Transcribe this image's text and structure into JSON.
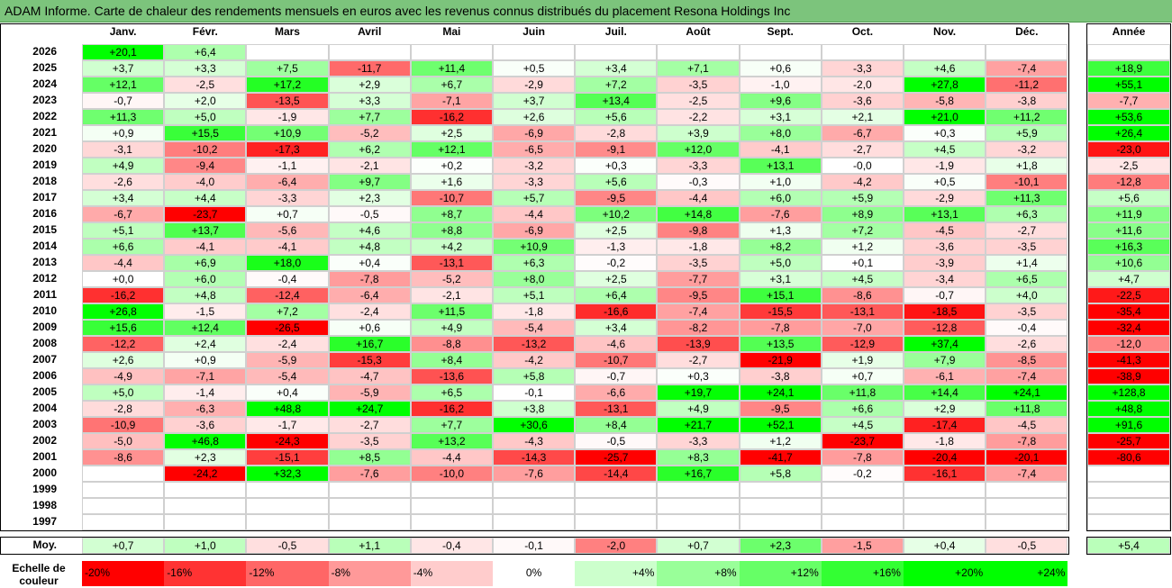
{
  "title": "ADAM Informe. Carte de chaleur des rendements mensuels en euros avec les revenus connus distribués du placement Resona Holdings Inc",
  "chart_data": {
    "type": "heatmap",
    "title": "ADAM Informe. Carte de chaleur des rendements mensuels en euros avec les revenus connus distribués du placement Resona Holdings Inc",
    "months": [
      "Janv.",
      "Févr.",
      "Mars",
      "Avril",
      "Mai",
      "Juin",
      "Juil.",
      "Août",
      "Sept.",
      "Oct.",
      "Nov.",
      "Déc."
    ],
    "year_header": "Année",
    "rows": [
      {
        "year": "2026",
        "values": [
          "+20,1",
          "+6,4",
          "",
          "",
          "",
          "",
          "",
          "",
          "",
          "",
          "",
          ""
        ],
        "annual": ""
      },
      {
        "year": "2025",
        "values": [
          "+3,7",
          "+3,3",
          "+7,5",
          "-11,7",
          "+11,4",
          "+0,5",
          "+3,4",
          "+7,1",
          "+0,6",
          "-3,3",
          "+4,6",
          "-7,4"
        ],
        "annual": "+18,9"
      },
      {
        "year": "2024",
        "values": [
          "+12,1",
          "-2,5",
          "+17,2",
          "+2,9",
          "+6,7",
          "-2,9",
          "+7,2",
          "-3,5",
          "-1,0",
          "-2,0",
          "+27,8",
          "-11,2"
        ],
        "annual": "+55,1"
      },
      {
        "year": "2023",
        "values": [
          "-0,7",
          "+2,0",
          "-13,5",
          "+3,3",
          "-7,1",
          "+3,7",
          "+13,4",
          "-2,5",
          "+9,6",
          "-3,6",
          "-5,8",
          "-3,8"
        ],
        "annual": "-7,7"
      },
      {
        "year": "2022",
        "values": [
          "+11,3",
          "+5,0",
          "-1,9",
          "+7,7",
          "-16,2",
          "+2,6",
          "+5,6",
          "-2,2",
          "+3,1",
          "+2,1",
          "+21,0",
          "+11,2"
        ],
        "annual": "+53,6"
      },
      {
        "year": "2021",
        "values": [
          "+0,9",
          "+15,5",
          "+10,9",
          "-5,2",
          "+2,5",
          "-6,9",
          "-2,8",
          "+3,9",
          "+8,0",
          "-6,7",
          "+0,3",
          "+5,9"
        ],
        "annual": "+26,4"
      },
      {
        "year": "2020",
        "values": [
          "-3,1",
          "-10,2",
          "-17,3",
          "+6,2",
          "+12,1",
          "-6,5",
          "-9,1",
          "+12,0",
          "-4,1",
          "-2,7",
          "+4,5",
          "-3,2"
        ],
        "annual": "-23,0"
      },
      {
        "year": "2019",
        "values": [
          "+4,9",
          "-9,4",
          "-1,1",
          "-2,1",
          "+0,2",
          "-3,2",
          "+0,3",
          "-3,3",
          "+13,1",
          "-0,0",
          "-1,9",
          "+1,8"
        ],
        "annual": "-2,5"
      },
      {
        "year": "2018",
        "values": [
          "-2,6",
          "-4,0",
          "-6,4",
          "+9,7",
          "+1,6",
          "-3,3",
          "+5,6",
          "-0,3",
          "+1,0",
          "-4,2",
          "+0,5",
          "-10,1"
        ],
        "annual": "-12,8"
      },
      {
        "year": "2017",
        "values": [
          "+3,4",
          "+4,4",
          "-3,3",
          "+2,3",
          "-10,7",
          "+5,7",
          "-9,5",
          "-4,4",
          "+6,0",
          "+5,9",
          "-2,9",
          "+11,3"
        ],
        "annual": "+5,6"
      },
      {
        "year": "2016",
        "values": [
          "-6,7",
          "-23,7",
          "+0,7",
          "-0,5",
          "+8,7",
          "-4,4",
          "+10,2",
          "+14,8",
          "-7,6",
          "+8,9",
          "+13,1",
          "+6,3"
        ],
        "annual": "+11,9"
      },
      {
        "year": "2015",
        "values": [
          "+5,1",
          "+13,7",
          "-5,6",
          "+4,6",
          "+8,8",
          "-6,9",
          "+2,5",
          "-9,8",
          "+1,3",
          "+7,2",
          "-4,5",
          "-2,7"
        ],
        "annual": "+11,6"
      },
      {
        "year": "2014",
        "values": [
          "+6,6",
          "-4,1",
          "-4,1",
          "+4,8",
          "+4,2",
          "+10,9",
          "-1,3",
          "-1,8",
          "+8,2",
          "+1,2",
          "-3,6",
          "-3,5"
        ],
        "annual": "+16,3"
      },
      {
        "year": "2013",
        "values": [
          "-4,4",
          "+6,9",
          "+18,0",
          "+0,4",
          "-13,1",
          "+6,3",
          "-0,2",
          "-3,5",
          "+5,0",
          "+0,1",
          "-3,9",
          "+1,4"
        ],
        "annual": "+10,6"
      },
      {
        "year": "2012",
        "values": [
          "+0,0",
          "+6,0",
          "-0,4",
          "-7,8",
          "-5,2",
          "+8,0",
          "+2,5",
          "-7,7",
          "+3,1",
          "+4,5",
          "-3,4",
          "+6,5"
        ],
        "annual": "+4,7"
      },
      {
        "year": "2011",
        "values": [
          "-16,2",
          "+4,8",
          "-12,4",
          "-6,4",
          "-2,1",
          "+5,1",
          "+6,4",
          "-9,5",
          "+15,1",
          "-8,6",
          "-0,7",
          "+4,0"
        ],
        "annual": "-22,5"
      },
      {
        "year": "2010",
        "values": [
          "+26,8",
          "-1,5",
          "+7,2",
          "-2,4",
          "+11,5",
          "-1,8",
          "-16,6",
          "-7,4",
          "-15,5",
          "-13,1",
          "-18,5",
          "-3,5"
        ],
        "annual": "-35,4"
      },
      {
        "year": "2009",
        "values": [
          "+15,6",
          "+12,4",
          "-26,5",
          "+0,6",
          "+4,9",
          "-5,4",
          "+3,4",
          "-8,2",
          "-7,8",
          "-7,0",
          "-12,8",
          "-0,4"
        ],
        "annual": "-32,4"
      },
      {
        "year": "2008",
        "values": [
          "-12,2",
          "+2,4",
          "-2,4",
          "+16,7",
          "-8,8",
          "-13,2",
          "-4,6",
          "-13,9",
          "+13,5",
          "-12,9",
          "+37,4",
          "-2,6"
        ],
        "annual": "-12,0"
      },
      {
        "year": "2007",
        "values": [
          "+2,6",
          "+0,9",
          "-5,9",
          "-15,3",
          "+8,4",
          "-4,2",
          "-10,7",
          "-2,7",
          "-21,9",
          "+1,9",
          "+7,9",
          "-8,5"
        ],
        "annual": "-41,3"
      },
      {
        "year": "2006",
        "values": [
          "-4,9",
          "-7,1",
          "-5,4",
          "-4,7",
          "-13,6",
          "+5,8",
          "-0,7",
          "+0,3",
          "-3,8",
          "+0,7",
          "-6,1",
          "-7,4"
        ],
        "annual": "-38,9"
      },
      {
        "year": "2005",
        "values": [
          "+5,0",
          "-1,4",
          "+0,4",
          "-5,9",
          "+6,5",
          "-0,1",
          "-6,6",
          "+19,7",
          "+24,1",
          "+11,8",
          "+14,4",
          "+24,1"
        ],
        "annual": "+128,8"
      },
      {
        "year": "2004",
        "values": [
          "-2,8",
          "-6,3",
          "+48,8",
          "+24,7",
          "-16,2",
          "+3,8",
          "-13,1",
          "+4,9",
          "-9,5",
          "+6,6",
          "+2,9",
          "+11,8"
        ],
        "annual": "+48,8"
      },
      {
        "year": "2003",
        "values": [
          "-10,9",
          "-3,6",
          "-1,7",
          "-2,7",
          "+7,7",
          "+30,6",
          "+8,4",
          "+21,7",
          "+52,1",
          "+4,5",
          "-17,4",
          "-4,5"
        ],
        "annual": "+91,6"
      },
      {
        "year": "2002",
        "values": [
          "-5,0",
          "+46,8",
          "-24,3",
          "-3,5",
          "+13,2",
          "-4,3",
          "-0,5",
          "-3,3",
          "+1,2",
          "-23,7",
          "-1,8",
          "-7,8"
        ],
        "annual": "-25,7"
      },
      {
        "year": "2001",
        "values": [
          "-8,6",
          "+2,3",
          "-15,1",
          "+8,5",
          "-4,4",
          "-14,3",
          "-25,7",
          "+8,3",
          "-41,7",
          "-7,8",
          "-20,4",
          "-20,1"
        ],
        "annual": "-80,6"
      },
      {
        "year": "2000",
        "values": [
          "",
          "-24,2",
          "+32,3",
          "-7,6",
          "-10,0",
          "-7,6",
          "-14,4",
          "+16,7",
          "+5,8",
          "-0,2",
          "-16,1",
          "-7,4"
        ],
        "annual": ""
      },
      {
        "year": "1999",
        "values": [
          "",
          "",
          "",
          "",
          "",
          "",
          "",
          "",
          "",
          "",
          "",
          ""
        ],
        "annual": ""
      },
      {
        "year": "1998",
        "values": [
          "",
          "",
          "",
          "",
          "",
          "",
          "",
          "",
          "",
          "",
          "",
          ""
        ],
        "annual": ""
      },
      {
        "year": "1997",
        "values": [
          "",
          "",
          "",
          "",
          "",
          "",
          "",
          "",
          "",
          "",
          "",
          ""
        ],
        "annual": ""
      }
    ],
    "average": {
      "label": "Moy.",
      "values": [
        "+0,7",
        "+1,0",
        "-0,5",
        "+1,1",
        "-0,4",
        "-0,1",
        "-2,0",
        "+0,7",
        "+2,3",
        "-1,5",
        "+0,4",
        "-0,5"
      ],
      "annual": "+5,4"
    },
    "scale": {
      "label_line1": "Echelle de",
      "label_line2": "couleur",
      "stops": [
        "-20%",
        "-16%",
        "-12%",
        "-8%",
        "-4%",
        "0%",
        "+4%",
        "+8%",
        "+12%",
        "+16%",
        "+20%",
        "+24%"
      ],
      "stop_values": [
        -20,
        -16,
        -12,
        -8,
        -4,
        0,
        4,
        8,
        12,
        16,
        20,
        24
      ]
    },
    "colors": {
      "negative": "#ff0000",
      "positive": "#00ff00",
      "neutral": "#ffffff",
      "title_bg": "#7cc47c"
    }
  }
}
